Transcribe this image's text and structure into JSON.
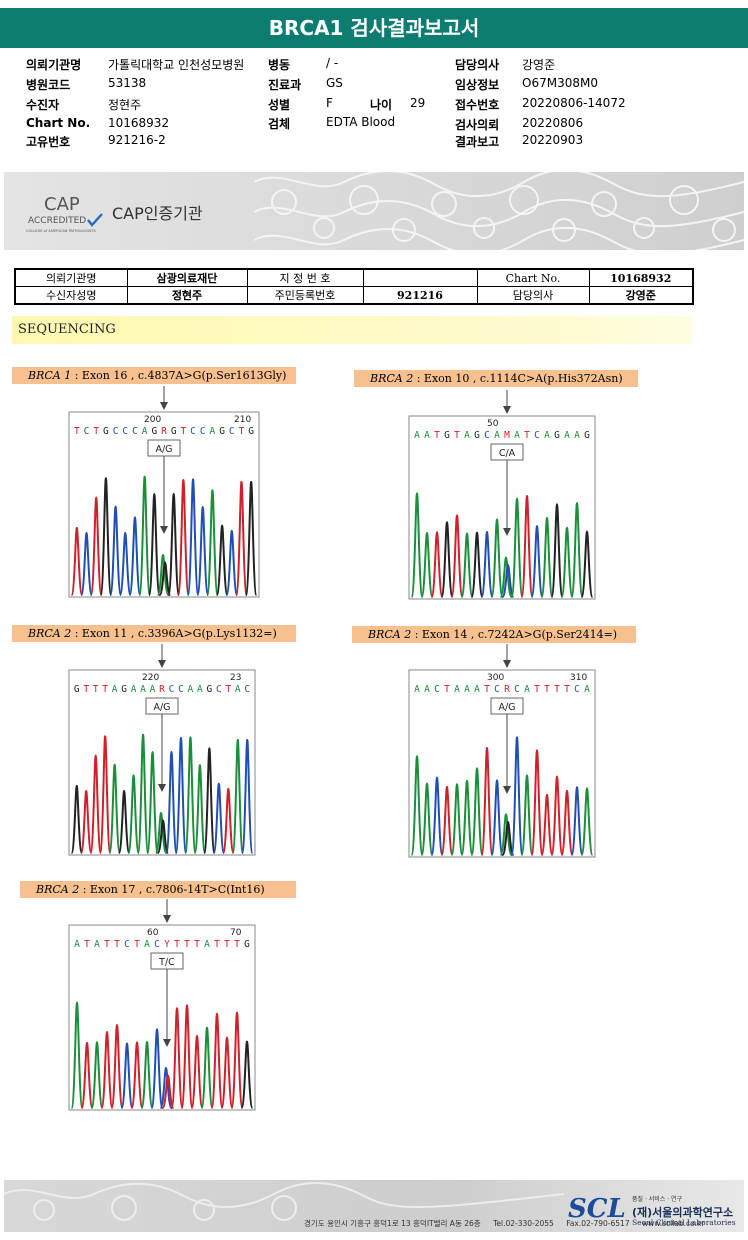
{
  "header": {
    "title": "BRCA1 검사결과보고서"
  },
  "info": {
    "col1": [
      {
        "label": "의뢰기관명",
        "value": "가톨릭대학교 인천성모병원"
      },
      {
        "label": "병원코드",
        "value": "53138"
      },
      {
        "label": "수진자",
        "value": "정현주"
      },
      {
        "label": "Chart No.",
        "value": "10168932"
      },
      {
        "label": "고유번호",
        "value": "921216-2"
      }
    ],
    "col2": [
      {
        "label": "병동",
        "value": "/ -"
      },
      {
        "label": "진료과",
        "value": "GS"
      },
      {
        "label": "성별",
        "value": "F"
      },
      {
        "label": "검체",
        "value": "EDTA Blood"
      }
    ],
    "age": {
      "label": "나이",
      "value": "29"
    },
    "col3": [
      {
        "label": "담당의사",
        "value": "강영준"
      },
      {
        "label": "임상정보",
        "value": "O67M308M0"
      },
      {
        "label": "접수번호",
        "value": "20220806-14072"
      },
      {
        "label": "검사의뢰",
        "value": "20220806"
      },
      {
        "label": "결과보고",
        "value": "20220903"
      }
    ]
  },
  "cap": {
    "logo_big": "CAP",
    "logo_accredited": "ACCREDITED",
    "logo_small": "COLLEGE of AMERICAN PATHOLOGISTS",
    "text": "CAP인증기관"
  },
  "patient_table": {
    "r1": [
      "의뢰기관명",
      "삼광의료재단",
      "지 정 번 호",
      "",
      "Chart No.",
      "10168932"
    ],
    "r2": [
      "수신자성명",
      "정현주",
      "주민등록번호",
      "921216",
      "담당의사",
      "강영준"
    ]
  },
  "sequencing_label": "SEQUENCING",
  "mutations": [
    {
      "gene": "BRCA 1",
      "desc": " : Exon 16 , c.4837A>G(p.Ser1613Gly)",
      "seq": "TCTGCCCAGRGTCCAGCTG",
      "pos1": "200",
      "pos2": "210",
      "call": "A/G"
    },
    {
      "gene": "BRCA 2",
      "desc": " : Exon 10 , c.1114C>A(p.His372Asn)",
      "seq": "AATGTAGCAMATCAGAAG",
      "pos1": "50",
      "pos2": "",
      "call": "C/A"
    },
    {
      "gene": "BRCA 2",
      "desc": " : Exon 11 , c.3396A>G(p.Lys1132=)",
      "seq": "GTTTAGAAARCCAAGCTAC",
      "pos1": "220",
      "pos2": "23",
      "call": "A/G"
    },
    {
      "gene": "BRCA 2",
      "desc": " : Exon 14 , c.7242A>G(p.Ser2414=)",
      "seq": "AACTAAATCRCATTTTCA",
      "pos1": "300",
      "pos2": "310",
      "call": "A/G"
    },
    {
      "gene": "BRCA 2",
      "desc": " : Exon 17 , c.7806-14T>C(Int16)",
      "seq": "ATATTCTACYTTTATTTG",
      "pos1": "60",
      "pos2": "70",
      "call": "T/C"
    }
  ],
  "footer": {
    "address": "경기도 용인시 기흥구 흥덕1로 13 흥덕IT밸리 A동 26층",
    "tel": "Tel.02-330-2055",
    "fax": "Fax.02-790-6517",
    "web": "www.scllab.co.kr",
    "scl": "SCL",
    "slogan": "품질 · 서비스 · 연구",
    "org_kor": "(재)서울의과학연구소",
    "org_eng": "Seoul Clinical Laboratories"
  },
  "colors": {
    "teal": "#0d7c71",
    "label_bg": "#f6c08f",
    "A": "#1a8f3a",
    "C": "#1f4fb5",
    "G": "#222222",
    "T": "#d0202a"
  }
}
